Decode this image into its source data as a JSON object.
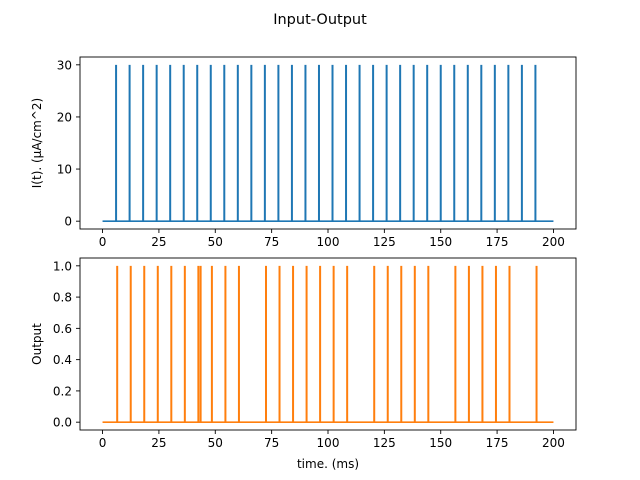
{
  "figure": {
    "suptitle": "Input-Output"
  },
  "chart_data": [
    {
      "type": "line",
      "title": "",
      "xlabel": "",
      "ylabel": "I(t). (µA/cm^2)",
      "xlim": [
        -10,
        210
      ],
      "ylim": [
        -1.5,
        31.5
      ],
      "xticks": [
        0,
        25,
        50,
        75,
        100,
        125,
        150,
        175,
        200
      ],
      "yticks": [
        0,
        10,
        20,
        30
      ],
      "grid": false,
      "legend": "none",
      "series": [
        {
          "color": "#1f77b4",
          "baseline": 0,
          "pulse_height": 30,
          "x_range": [
            0,
            200
          ],
          "pulse_times": [
            6,
            12,
            18,
            24,
            30,
            36,
            42,
            48,
            54,
            60,
            66,
            72,
            78,
            84,
            90,
            96,
            102,
            108,
            114,
            120,
            126,
            132,
            138,
            144,
            150,
            156,
            162,
            168,
            174,
            180,
            186,
            192
          ]
        }
      ]
    },
    {
      "type": "line",
      "title": "",
      "xlabel": "time. (ms)",
      "ylabel": "Output",
      "xlim": [
        -10,
        210
      ],
      "ylim": [
        -0.05,
        1.05
      ],
      "xticks": [
        0,
        25,
        50,
        75,
        100,
        125,
        150,
        175,
        200
      ],
      "yticks": [
        0.0,
        0.2,
        0.4,
        0.6,
        0.8,
        1.0
      ],
      "grid": false,
      "legend": "none",
      "series": [
        {
          "color": "#ff7f0e",
          "baseline": 0,
          "pulse_height": 1,
          "x_range": [
            0,
            200
          ],
          "pulse_times": [
            6.5,
            12.5,
            18.5,
            24.5,
            30.5,
            36.5,
            42.5,
            43.5,
            48.5,
            54.5,
            60.5,
            72.5,
            78.5,
            84.5,
            90.5,
            96.5,
            102.5,
            108.5,
            120.5,
            126.5,
            132.5,
            138.5,
            144.5,
            156.5,
            162.5,
            168.5,
            174.5,
            180.5,
            192.5
          ]
        }
      ]
    }
  ]
}
